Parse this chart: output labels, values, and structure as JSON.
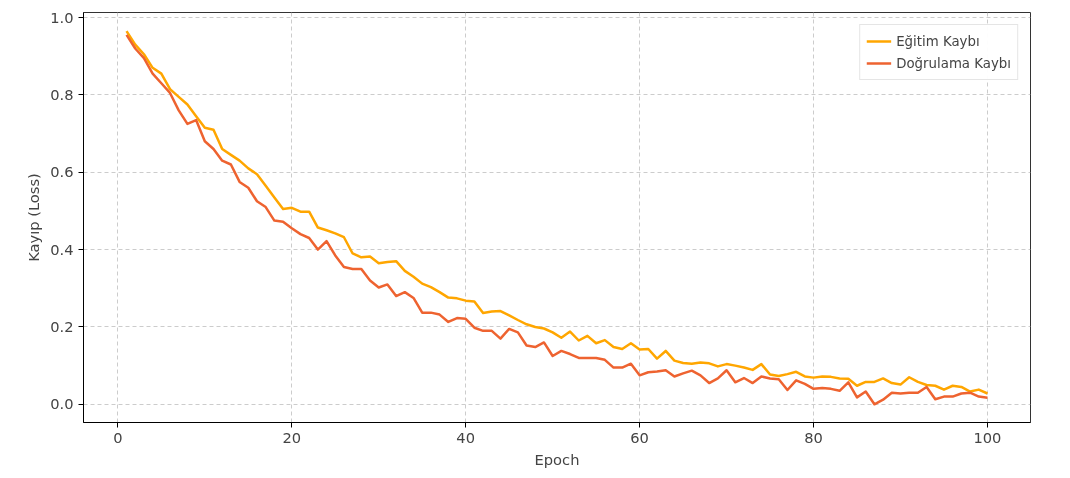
{
  "chart_data": {
    "type": "line",
    "xlabel": "Epoch",
    "ylabel": "Kayıp (Loss)",
    "x": [
      1,
      2,
      3,
      4,
      5,
      6,
      7,
      8,
      9,
      10,
      11,
      12,
      13,
      14,
      15,
      16,
      17,
      18,
      19,
      20,
      21,
      22,
      23,
      24,
      25,
      26,
      27,
      28,
      29,
      30,
      31,
      32,
      33,
      34,
      35,
      36,
      37,
      38,
      39,
      40,
      41,
      42,
      43,
      44,
      45,
      46,
      47,
      48,
      49,
      50,
      51,
      52,
      53,
      54,
      55,
      56,
      57,
      58,
      59,
      60,
      61,
      62,
      63,
      64,
      65,
      66,
      67,
      68,
      69,
      70,
      71,
      72,
      73,
      74,
      75,
      76,
      77,
      78,
      79,
      80,
      81,
      82,
      83,
      84,
      85,
      86,
      87,
      88,
      89,
      90,
      91,
      92,
      93,
      94,
      95,
      96,
      97,
      98,
      99,
      100
    ],
    "series": [
      {
        "name": "Eğitim Kaybı",
        "color": "#ffa600",
        "values": [
          0.965,
          0.93,
          0.905,
          0.87,
          0.855,
          0.815,
          0.795,
          0.775,
          0.745,
          0.715,
          0.71,
          0.66,
          0.645,
          0.63,
          0.61,
          0.595,
          0.565,
          0.535,
          0.505,
          0.508,
          0.498,
          0.498,
          0.457,
          0.45,
          0.442,
          0.432,
          0.39,
          0.38,
          0.382,
          0.365,
          0.368,
          0.37,
          0.345,
          0.33,
          0.312,
          0.303,
          0.29,
          0.276,
          0.274,
          0.268,
          0.266,
          0.236,
          0.24,
          0.241,
          0.23,
          0.218,
          0.207,
          0.2,
          0.196,
          0.186,
          0.172,
          0.188,
          0.165,
          0.177,
          0.158,
          0.166,
          0.148,
          0.143,
          0.158,
          0.142,
          0.143,
          0.118,
          0.138,
          0.113,
          0.107,
          0.105,
          0.108,
          0.106,
          0.098,
          0.104,
          0.1,
          0.095,
          0.089,
          0.104,
          0.077,
          0.073,
          0.078,
          0.084,
          0.072,
          0.069,
          0.072,
          0.071,
          0.067,
          0.066,
          0.048,
          0.058,
          0.058,
          0.067,
          0.055,
          0.051,
          0.07,
          0.058,
          0.05,
          0.048,
          0.038,
          0.048,
          0.045,
          0.033,
          0.038,
          0.028
        ]
      },
      {
        "name": "Doğrulama Kaybı",
        "color": "#ee6330",
        "values": [
          0.955,
          0.92,
          0.895,
          0.855,
          0.83,
          0.805,
          0.76,
          0.725,
          0.735,
          0.68,
          0.66,
          0.63,
          0.62,
          0.575,
          0.56,
          0.525,
          0.51,
          0.475,
          0.472,
          0.455,
          0.44,
          0.43,
          0.4,
          0.422,
          0.385,
          0.355,
          0.35,
          0.35,
          0.32,
          0.302,
          0.31,
          0.28,
          0.29,
          0.275,
          0.237,
          0.237,
          0.232,
          0.213,
          0.223,
          0.221,
          0.198,
          0.19,
          0.19,
          0.17,
          0.195,
          0.186,
          0.152,
          0.148,
          0.16,
          0.125,
          0.138,
          0.13,
          0.12,
          0.12,
          0.12,
          0.115,
          0.095,
          0.095,
          0.105,
          0.075,
          0.083,
          0.085,
          0.088,
          0.072,
          0.08,
          0.087,
          0.075,
          0.055,
          0.067,
          0.088,
          0.057,
          0.068,
          0.055,
          0.072,
          0.067,
          0.065,
          0.037,
          0.062,
          0.053,
          0.04,
          0.042,
          0.04,
          0.035,
          0.057,
          0.018,
          0.033,
          0.0,
          0.012,
          0.03,
          0.028,
          0.03,
          0.03,
          0.045,
          0.013,
          0.02,
          0.02,
          0.028,
          0.03,
          0.02,
          0.017
        ]
      }
    ],
    "xlim": [
      -3.95,
      104.95
    ],
    "ylim": [
      -0.047,
      1.013
    ],
    "xticks": [
      0,
      20,
      40,
      60,
      80,
      100
    ],
    "yticks": [
      {
        "value": 0,
        "label": "0.0"
      },
      {
        "value": 0.2,
        "label": "0.2"
      },
      {
        "value": 0.4,
        "label": "0.4"
      },
      {
        "value": 0.6,
        "label": "0.6"
      },
      {
        "value": 0.8,
        "label": "0.8"
      },
      {
        "value": 1,
        "label": "1.0"
      }
    ],
    "grid": true,
    "legend": "top right",
    "marker": "none",
    "line_style": "solid"
  }
}
